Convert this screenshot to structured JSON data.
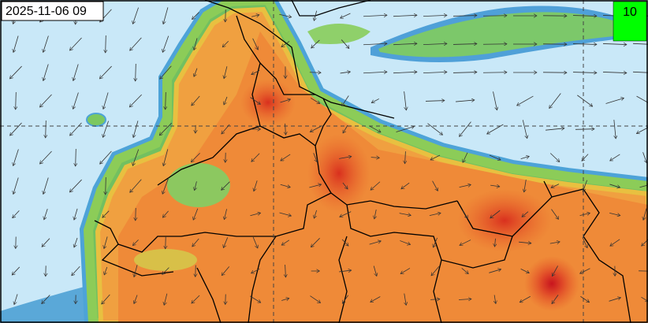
{
  "timestamp": "2025-11-06 09",
  "legend_value": "10"
}
